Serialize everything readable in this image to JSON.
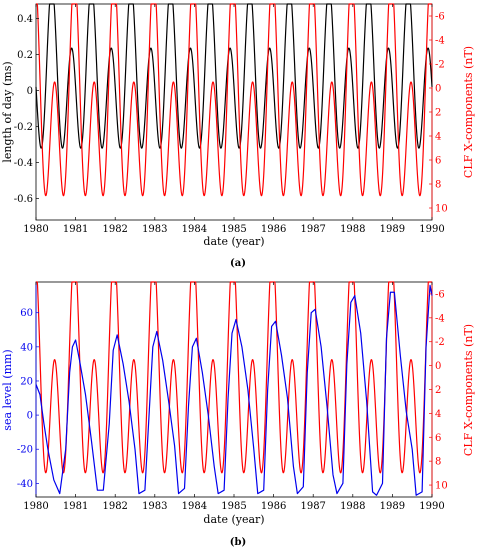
{
  "chart_data": [
    {
      "type": "line",
      "panel_label": "(a)",
      "xlabel": "date (year)",
      "ylabel_left": "length of day (ms)",
      "ylabel_right": "CLF X-components (nT)",
      "xlim": [
        1980,
        1990
      ],
      "ylim_left": [
        -0.72,
        0.48
      ],
      "ylim_right": [
        11,
        -7
      ],
      "right_axis_inverted": true,
      "x_ticks": [
        1980,
        1981,
        1982,
        1983,
        1984,
        1985,
        1986,
        1987,
        1988,
        1989,
        1990
      ],
      "y_ticks_left": [
        0.4,
        0.2,
        0,
        -0.2,
        -0.4,
        -0.6
      ],
      "y_ticks_left_labels": [
        "0.4",
        "0.2",
        "0",
        "-0.2",
        "-0.4",
        "-0.6"
      ],
      "y_ticks_right": [
        -6,
        -4,
        -2,
        0,
        2,
        4,
        6,
        8,
        10
      ],
      "colors": {
        "lod": "#000000",
        "clf": "#ff0000"
      },
      "series": [
        {
          "id": "lod",
          "axis": "left",
          "color": "#000000",
          "kind": "periodic",
          "base": 0.05,
          "annual_amp": 0.175,
          "annual_phase": -2.513,
          "semiannual_amp": 0.36,
          "semiannual_phase": 1.257,
          "range": [
            -0.72,
            0.48
          ]
        },
        {
          "id": "clf",
          "axis": "right",
          "color": "#ff0000",
          "kind": "periodic",
          "base": 1.8,
          "annual_amp": -4.5,
          "annual_phase": 0.188,
          "semiannual_amp": -6.8,
          "semiannual_phase": 0.377,
          "range": [
            -7,
            11
          ]
        }
      ]
    },
    {
      "type": "line",
      "panel_label": "(b)",
      "xlabel": "date (year)",
      "ylabel_left": "sea level (mm)",
      "ylabel_right": "CLF X-components (nT)",
      "xlim": [
        1980,
        1990
      ],
      "ylim_left": [
        -48,
        78
      ],
      "ylim_right": [
        11,
        -7
      ],
      "right_axis_inverted": true,
      "x_ticks": [
        1980,
        1981,
        1982,
        1983,
        1984,
        1985,
        1986,
        1987,
        1988,
        1989,
        1990
      ],
      "y_ticks_left": [
        60,
        40,
        20,
        0,
        -20,
        -40
      ],
      "y_ticks_right": [
        -6,
        -4,
        -2,
        0,
        2,
        4,
        6,
        8,
        10
      ],
      "colors": {
        "sea": "#0000ee",
        "clf": "#ff0000"
      },
      "series": [
        {
          "id": "clf",
          "axis": "right",
          "color": "#ff0000",
          "kind": "periodic",
          "base": 1.8,
          "annual_amp": -4.5,
          "annual_phase": 0.188,
          "semiannual_amp": -6.8,
          "semiannual_phase": 0.377,
          "range": [
            -7,
            11
          ]
        },
        {
          "id": "sea",
          "axis": "left",
          "color": "#0000ee",
          "kind": "points",
          "x": [
            1980.0,
            1980.1,
            1980.2,
            1980.3,
            1980.45,
            1980.6,
            1980.75,
            1980.85,
            1980.92,
            1981.0,
            1981.1,
            1981.25,
            1981.4,
            1981.55,
            1981.7,
            1981.85,
            1981.95,
            1982.05,
            1982.2,
            1982.35,
            1982.5,
            1982.6,
            1982.75,
            1982.85,
            1982.95,
            1983.05,
            1983.2,
            1983.35,
            1983.5,
            1983.6,
            1983.75,
            1983.85,
            1983.95,
            1984.05,
            1984.2,
            1984.35,
            1984.5,
            1984.6,
            1984.75,
            1984.85,
            1984.95,
            1985.05,
            1985.2,
            1985.35,
            1985.5,
            1985.6,
            1985.75,
            1985.85,
            1985.95,
            1986.05,
            1986.2,
            1986.35,
            1986.5,
            1986.6,
            1986.75,
            1986.85,
            1986.95,
            1987.05,
            1987.2,
            1987.35,
            1987.5,
            1987.6,
            1987.75,
            1987.85,
            1987.95,
            1988.05,
            1988.2,
            1988.35,
            1988.5,
            1988.6,
            1988.75,
            1988.85,
            1988.95,
            1989.05,
            1989.2,
            1989.35,
            1989.5,
            1989.6,
            1989.75,
            1989.85,
            1989.95,
            1990.0
          ],
          "y": [
            18,
            12,
            -5,
            -20,
            -38,
            -46,
            -20,
            25,
            40,
            44,
            32,
            12,
            -15,
            -44,
            -44,
            -5,
            38,
            47,
            30,
            8,
            -20,
            -46,
            -44,
            -2,
            40,
            49,
            32,
            8,
            -18,
            -46,
            -43,
            5,
            40,
            45,
            25,
            0,
            -30,
            -46,
            -44,
            10,
            48,
            56,
            40,
            15,
            -20,
            -46,
            -44,
            15,
            52,
            55,
            35,
            10,
            -30,
            -46,
            -42,
            25,
            60,
            62,
            40,
            5,
            -35,
            -46,
            -40,
            30,
            66,
            70,
            48,
            8,
            -45,
            -47,
            -40,
            45,
            72,
            72,
            35,
            2,
            -20,
            -47,
            -45,
            40,
            76,
            70
          ]
        }
      ]
    }
  ]
}
